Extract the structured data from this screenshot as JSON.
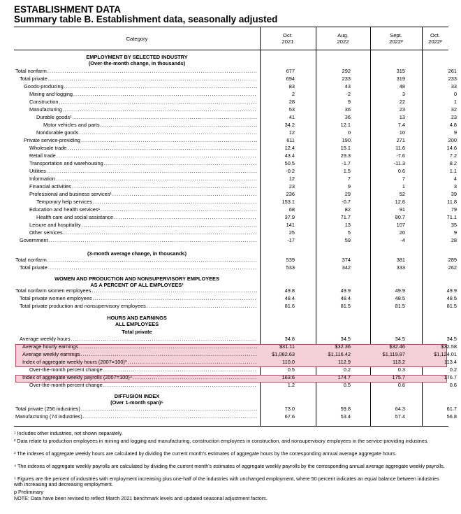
{
  "title": "ESTABLISHMENT DATA",
  "subtitle": "Summary table B. Establishment data, seasonally adjusted",
  "columns": {
    "category": "Category",
    "c1": [
      "Oct.",
      "2021"
    ],
    "c2": [
      "Aug.",
      "2022"
    ],
    "c3": [
      "Sept.",
      "2022ᵖ"
    ],
    "c4": [
      "Oct.",
      "2022ᵖ"
    ]
  },
  "sections": {
    "s1": [
      "EMPLOYMENT BY SELECTED INDUSTRY",
      "(Over-the-month change, in thousands)"
    ],
    "s2": [
      "(3-month average change, in thousands)"
    ],
    "s3": [
      "WOMEN AND PRODUCTION AND NONSUPERVISORY EMPLOYEES",
      "AS A PERCENT OF ALL EMPLOYEES²"
    ],
    "s4": [
      "HOURS AND EARNINGS",
      "ALL EMPLOYEES"
    ],
    "s4b": [
      "Total private"
    ],
    "s5": [
      "DIFFUSION INDEX",
      "(Over 1-month span)⁵"
    ]
  },
  "rows": [
    {
      "label": "Total nonfarm",
      "v": [
        "677",
        "292",
        "315",
        "261"
      ]
    },
    {
      "label": "Total private",
      "v": [
        "694",
        "233",
        "319",
        "233"
      ]
    },
    {
      "label": "Goods-producing",
      "v": [
        "83",
        "43",
        "48",
        "33"
      ]
    },
    {
      "label": "Mining and logging",
      "v": [
        "2",
        "-2",
        "3",
        "0"
      ]
    },
    {
      "label": "Construction",
      "v": [
        "28",
        "9",
        "22",
        "1"
      ]
    },
    {
      "label": "Manufacturing",
      "v": [
        "53",
        "36",
        "23",
        "32"
      ]
    },
    {
      "label": "Durable goods¹",
      "v": [
        "41",
        "36",
        "13",
        "23"
      ]
    },
    {
      "label": "Motor vehicles and parts",
      "v": [
        "34.2",
        "12.1",
        "7.4",
        "4.8"
      ]
    },
    {
      "label": "Nondurable goods",
      "v": [
        "12",
        "0",
        "10",
        "9"
      ]
    },
    {
      "label": "Private service-providing",
      "v": [
        "611",
        "190",
        "271",
        "200"
      ]
    },
    {
      "label": "Wholesale trade",
      "v": [
        "12.4",
        "15.1",
        "11.6",
        "14.6"
      ]
    },
    {
      "label": "Retail trade",
      "v": [
        "43.4",
        "29.3",
        "-7.6",
        "7.2"
      ]
    },
    {
      "label": "Transportation and warehousing",
      "v": [
        "50.5",
        "-1.7",
        "-11.3",
        "8.2"
      ]
    },
    {
      "label": "Utilities",
      "v": [
        "-0.2",
        "1.5",
        "0.6",
        "1.1"
      ]
    },
    {
      "label": "Information",
      "v": [
        "12",
        "7",
        "7",
        "4"
      ]
    },
    {
      "label": "Financial activities",
      "v": [
        "23",
        "9",
        "1",
        "3"
      ]
    },
    {
      "label": "Professional and business services¹",
      "v": [
        "236",
        "29",
        "52",
        "39"
      ]
    },
    {
      "label": "Temporary help services",
      "v": [
        "153.1",
        "-0.7",
        "12.6",
        "11.8"
      ]
    },
    {
      "label": "Education and health services¹",
      "v": [
        "68",
        "82",
        "91",
        "79"
      ]
    },
    {
      "label": "Health care and social assistance",
      "v": [
        "37.9",
        "71.7",
        "80.7",
        "71.1"
      ]
    },
    {
      "label": "Leisure and hospitality",
      "v": [
        "141",
        "13",
        "107",
        "35"
      ]
    },
    {
      "label": "Other services",
      "v": [
        "25",
        "5",
        "20",
        "9"
      ]
    },
    {
      "label": "Government",
      "v": [
        "-17",
        "59",
        "-4",
        "28"
      ]
    },
    {
      "label": "Total nonfarm",
      "v": [
        "539",
        "374",
        "381",
        "289"
      ]
    },
    {
      "label": "Total private",
      "v": [
        "533",
        "342",
        "333",
        "262"
      ]
    },
    {
      "label": "Total nonfarm women employees",
      "v": [
        "49.8",
        "49.9",
        "49.9",
        "49.9"
      ]
    },
    {
      "label": "Total private women employees",
      "v": [
        "48.4",
        "48.4",
        "48.5",
        "48.5"
      ]
    },
    {
      "label": "Total private production and nonsupervisory employees",
      "v": [
        "81.6",
        "81.5",
        "81.5",
        "81.5"
      ]
    },
    {
      "label": "Average weekly hours",
      "v": [
        "34.8",
        "34.5",
        "34.5",
        "34.5"
      ]
    },
    {
      "label": "Average hourly earnings",
      "v": [
        "$31.11",
        "$32.36",
        "$32.46",
        "$32.58"
      ]
    },
    {
      "label": "Average weekly earnings",
      "v": [
        "$1,082.63",
        "$1,116.42",
        "$1,119.87",
        "$1,124.01"
      ]
    },
    {
      "label": "Index of aggregate weekly hours (2007=100)³",
      "v": [
        "110.0",
        "112.9",
        "113.2",
        "113.4"
      ]
    },
    {
      "label": "Over-the-month percent change",
      "v": [
        "0.5",
        "0.2",
        "0.3",
        "0.2"
      ]
    },
    {
      "label": "Index of aggregate weekly payrolls (2007=100)⁴",
      "v": [
        "163.6",
        "174.7",
        "175.7",
        "176.7"
      ]
    },
    {
      "label": "Over-the-month percent change",
      "v": [
        "1.2",
        "0.5",
        "0.6",
        "0.6"
      ]
    },
    {
      "label": "Total private (256 industries)",
      "v": [
        "73.0",
        "59.8",
        "64.3",
        "61.7"
      ]
    },
    {
      "label": "Manufacturing (74 industries)",
      "v": [
        "67.6",
        "53.4",
        "57.4",
        "56.8"
      ]
    }
  ],
  "footnotes": [
    "¹ Includes other industries, not shown separately.",
    "² Data relate to production employees in mining and logging and manufacturing, construction employees in construction, and nonsupervisory employees in the service-providing industries.",
    "³ The indexes of aggregate weekly hours are calculated by dividing the current month's estimates of aggregate hours by the corresponding annual average aggregate hours.",
    "⁴ The indexes of aggregate weekly payrolls are calculated by dividing the current month's estimates of aggregate weekly payrolls by the corresponding annual average aggregate weekly payrolls.",
    "⁵ Figures are the percent of industries with employment increasing plus one-half of the industries with unchanged employment, where 50 percent indicates an equal balance between industries with increasing and decreasing employment.",
    "p Preliminary",
    "NOTE: Data have been revised to reflect March 2021 benchmark levels and updated seasonal adjustment factors."
  ],
  "colors": {
    "highlight_fill": "#f6d0d8",
    "highlight_border": "#c5405c"
  }
}
